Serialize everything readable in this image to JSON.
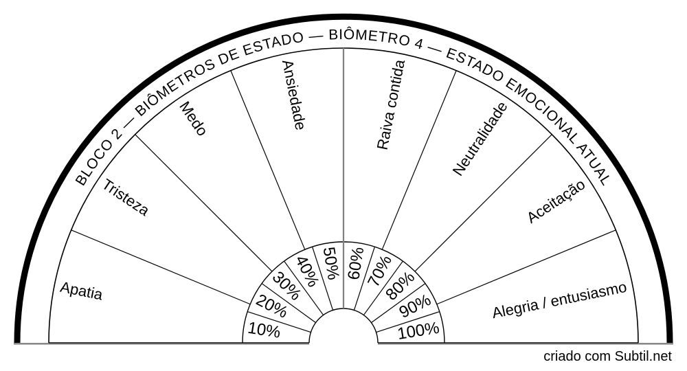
{
  "page": {
    "watermark": "criado com Subtil.net"
  },
  "colors": {
    "line": "#000000",
    "muted_line": "#808080",
    "watermark": "#c2c2c2",
    "background": "#ffffff"
  },
  "chart_data": {
    "type": "semicircular-dial",
    "title": "BLOCO 2 — BIÔMETROS DE ESTADO — BIÔMETRO 4 — ESTADO EMOCIONAL ATUAL",
    "orientation": "half-circle-up",
    "sectors": [
      "Apatia",
      "Tristeza",
      "Medo",
      "Ansiedade",
      "Raiva contida",
      "Neutralidade",
      "Aceitação",
      "Alegria / entusiasmo"
    ],
    "sector_angle_deg": 22.5,
    "scale_labels": [
      "10%",
      "20%",
      "30%",
      "40%",
      "50%",
      "60%",
      "70%",
      "80%",
      "90%",
      "100%"
    ],
    "scale_wedge_angle_deg": 18,
    "legend_position": "none",
    "grid": "radial-dividers"
  }
}
